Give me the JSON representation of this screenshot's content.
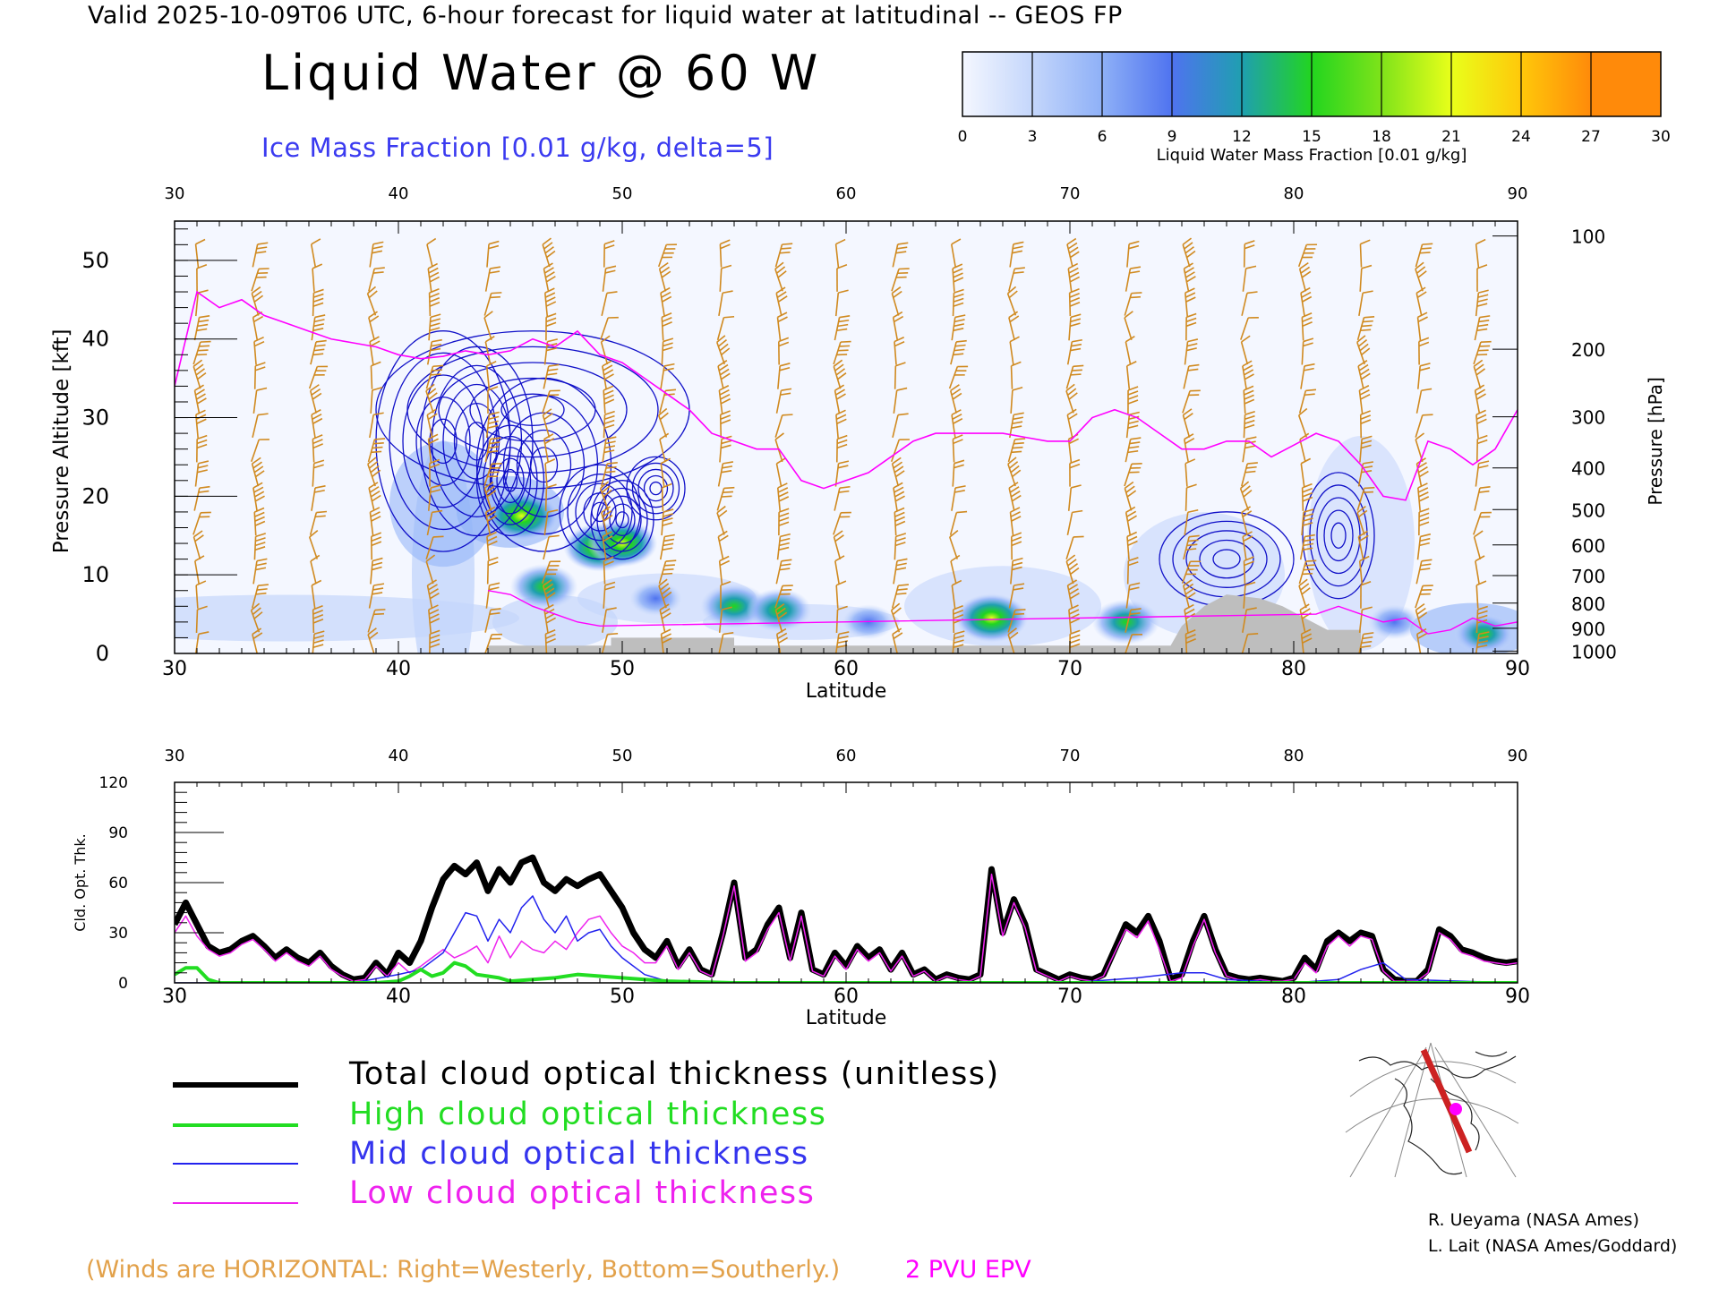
{
  "header": {
    "valid_line": "Valid 2025-10-09T06 UTC, 6-hour forecast for liquid water at latitudinal -- GEOS FP",
    "title": "Liquid Water @ 60 W",
    "ice_label": "Ice Mass Fraction [0.01 g/kg, delta=5]"
  },
  "colorbar": {
    "ticks": [
      "0",
      "3",
      "6",
      "9",
      "12",
      "15",
      "18",
      "21",
      "24",
      "27",
      "30"
    ],
    "label": "Liquid Water Mass Fraction [0.01 g/kg]",
    "colors": [
      "#f4f7ff",
      "#c4d6fb",
      "#8eb0f7",
      "#4f73ef",
      "#1f9fb0",
      "#22d51f",
      "#7fe31a",
      "#e9ff1a",
      "#ffc80a",
      "#ff8a0a"
    ]
  },
  "chart_data": [
    {
      "type": "heatmap",
      "title": "Liquid Water @ 60 W",
      "xlabel": "Latitude",
      "ylabel": "Pressure Altitude [kft]",
      "y2label": "Pressure [hPa]",
      "xlim": [
        30,
        90
      ],
      "ylim": [
        0,
        55
      ],
      "x_ticks": [
        "30",
        "40",
        "50",
        "60",
        "70",
        "80",
        "90"
      ],
      "y_ticks": [
        "0",
        "10",
        "20",
        "30",
        "40",
        "50"
      ],
      "pressure_ticks": [
        {
          "label": "100",
          "kft": 53.1
        },
        {
          "label": "200",
          "kft": 38.7
        },
        {
          "label": "300",
          "kft": 30.1
        },
        {
          "label": "400",
          "kft": 23.6
        },
        {
          "label": "500",
          "kft": 18.3
        },
        {
          "label": "600",
          "kft": 13.8
        },
        {
          "label": "700",
          "kft": 9.9
        },
        {
          "label": "800",
          "kft": 6.4
        },
        {
          "label": "900",
          "kft": 3.2
        },
        {
          "label": "1000",
          "kft": 0.3
        }
      ],
      "pvu_line": {
        "name": "2 PVU EPV",
        "color": "#ff00ff",
        "lat": [
          30,
          31,
          32,
          33,
          34,
          35,
          36,
          37,
          38,
          39,
          40,
          41,
          42,
          43,
          44,
          45,
          46,
          47,
          48,
          49,
          50,
          51,
          52,
          53,
          54,
          55,
          56,
          57,
          58,
          59,
          60,
          61,
          62,
          63,
          64,
          65,
          66,
          67,
          68,
          69,
          70,
          71,
          72,
          73,
          74,
          75,
          76,
          77,
          78,
          79,
          80,
          81,
          82,
          83,
          84,
          85,
          86,
          87,
          88,
          89,
          90
        ],
        "kft": [
          34,
          46,
          44,
          45,
          43,
          42,
          41,
          40,
          39.5,
          39,
          38,
          37.5,
          37.8,
          38.5,
          38,
          38.5,
          40,
          39,
          41,
          38,
          37,
          35,
          33,
          31,
          28,
          27,
          26,
          26,
          22,
          21,
          22,
          23,
          25,
          27,
          28,
          28,
          28,
          28,
          27.5,
          27,
          27,
          30,
          31,
          30,
          28,
          26,
          26,
          27,
          27,
          25,
          26.5,
          28,
          27,
          24,
          20,
          19.5,
          27,
          26,
          24,
          26,
          31
        ]
      },
      "liquid_blobs": [
        {
          "lat": 45.5,
          "kft": 17.5,
          "value": 21
        },
        {
          "lat": 46.5,
          "kft": 8.5,
          "value": 18
        },
        {
          "lat": 49.0,
          "kft": 13.5,
          "value": 20
        },
        {
          "lat": 50.0,
          "kft": 14.0,
          "value": 19
        },
        {
          "lat": 51.5,
          "kft": 7.0,
          "value": 12
        },
        {
          "lat": 55.0,
          "kft": 6.0,
          "value": 18
        },
        {
          "lat": 57.0,
          "kft": 5.5,
          "value": 17
        },
        {
          "lat": 61.0,
          "kft": 4.0,
          "value": 12
        },
        {
          "lat": 66.5,
          "kft": 4.5,
          "value": 20
        },
        {
          "lat": 72.5,
          "kft": 4.0,
          "value": 18
        },
        {
          "lat": 84.5,
          "kft": 4.0,
          "value": 12
        },
        {
          "lat": 88.5,
          "kft": 2.5,
          "value": 15
        }
      ],
      "terrain_kft": [
        {
          "lat": 44,
          "kft": 1
        },
        {
          "lat": 49.5,
          "kft": 2
        },
        {
          "lat": 55,
          "kft": 1
        },
        {
          "lat": 61,
          "kft": 1
        },
        {
          "lat": 75,
          "kft": 3.5
        },
        {
          "lat": 76,
          "kft": 6
        },
        {
          "lat": 77,
          "kft": 7.5
        },
        {
          "lat": 78.5,
          "kft": 7
        },
        {
          "lat": 79.5,
          "kft": 6
        },
        {
          "lat": 80.5,
          "kft": 4.5
        },
        {
          "lat": 81.5,
          "kft": 3
        }
      ]
    },
    {
      "type": "line",
      "xlabel": "Latitude",
      "ylabel": "Cld. Opt. Thk.",
      "xlim": [
        30,
        90
      ],
      "ylim": [
        0,
        120
      ],
      "x_ticks": [
        "30",
        "40",
        "50",
        "60",
        "70",
        "80",
        "90"
      ],
      "y_ticks": [
        "0",
        "30",
        "60",
        "90",
        "120"
      ],
      "series": [
        {
          "name": "Total cloud optical thickness (unitless)",
          "color": "#000000",
          "x": [
            30,
            30.5,
            31,
            31.5,
            32,
            32.5,
            33,
            33.5,
            34,
            34.5,
            35,
            35.5,
            36,
            36.5,
            37,
            37.5,
            38,
            38.5,
            39,
            39.5,
            40,
            40.5,
            41,
            41.5,
            42,
            42.5,
            43,
            43.5,
            44,
            44.5,
            45,
            45.5,
            46,
            46.5,
            47,
            47.5,
            48,
            48.5,
            49,
            49.5,
            50,
            50.5,
            51,
            51.5,
            52,
            52.5,
            53,
            53.5,
            54,
            54.5,
            55,
            55.5,
            56,
            56.5,
            57,
            57.5,
            58,
            58.5,
            59,
            59.5,
            60,
            60.5,
            61,
            61.5,
            62,
            62.5,
            63,
            63.5,
            64,
            64.5,
            65,
            65.5,
            66,
            66.5,
            67,
            67.5,
            68,
            68.5,
            69,
            69.5,
            70,
            70.5,
            71,
            71.5,
            72,
            72.5,
            73,
            73.5,
            74,
            74.5,
            75,
            75.5,
            76,
            76.5,
            77,
            77.5,
            78,
            78.5,
            79,
            79.5,
            80,
            80.5,
            81,
            81.5,
            82,
            82.5,
            83,
            83.5,
            84,
            84.5,
            85,
            85.5,
            86,
            86.5,
            87,
            87.5,
            88,
            88.5,
            89,
            89.5,
            90
          ],
          "values": [
            35,
            48,
            35,
            22,
            18,
            20,
            25,
            28,
            22,
            15,
            20,
            15,
            12,
            18,
            10,
            5,
            2,
            3,
            12,
            5,
            18,
            12,
            25,
            45,
            62,
            70,
            65,
            72,
            55,
            68,
            60,
            72,
            75,
            60,
            55,
            62,
            58,
            62,
            65,
            55,
            45,
            30,
            20,
            15,
            25,
            10,
            20,
            8,
            5,
            30,
            60,
            15,
            20,
            35,
            45,
            15,
            42,
            8,
            5,
            18,
            10,
            22,
            15,
            20,
            8,
            18,
            5,
            8,
            2,
            5,
            3,
            2,
            5,
            68,
            30,
            50,
            35,
            8,
            5,
            2,
            5,
            3,
            2,
            5,
            20,
            35,
            30,
            40,
            25,
            2,
            5,
            25,
            40,
            20,
            5,
            3,
            2,
            3,
            2,
            1,
            3,
            15,
            8,
            25,
            30,
            25,
            30,
            28,
            8,
            2,
            1,
            1,
            8,
            32,
            28,
            20,
            18,
            15,
            13,
            12,
            13
          ],
          "stroke_width": 7
        },
        {
          "name": "High cloud optical thickness",
          "color": "#22dd22",
          "x": [
            30,
            30.5,
            31,
            31.5,
            32,
            33,
            34,
            35,
            36,
            37,
            38,
            39,
            40,
            40.5,
            41,
            41.5,
            42,
            42.5,
            43,
            43.5,
            44,
            44.5,
            45,
            46,
            47,
            48,
            49,
            50,
            51,
            52,
            55,
            60,
            70,
            80,
            90
          ],
          "values": [
            5,
            9,
            9,
            2,
            0,
            0,
            0,
            0,
            0,
            0,
            0,
            0,
            1,
            4,
            8,
            4,
            6,
            12,
            10,
            5,
            4,
            3,
            1,
            2,
            3,
            5,
            4,
            3,
            2,
            1,
            0,
            0,
            0,
            0,
            0
          ],
          "stroke_width": 4
        },
        {
          "name": "Mid cloud optical thickness",
          "color": "#2222ee",
          "x": [
            30,
            38,
            40,
            41,
            42,
            42.5,
            43,
            43.5,
            44,
            44.5,
            45,
            45.5,
            46,
            46.5,
            47,
            47.5,
            48,
            48.5,
            49,
            49.5,
            50,
            51,
            52,
            55,
            60,
            70,
            73,
            75,
            76,
            77,
            80,
            82,
            83,
            84,
            85,
            90
          ],
          "values": [
            0,
            0,
            5,
            8,
            18,
            30,
            42,
            40,
            25,
            38,
            30,
            45,
            52,
            38,
            30,
            40,
            25,
            30,
            32,
            22,
            15,
            5,
            1,
            0,
            0,
            0,
            3,
            6,
            6,
            2,
            0,
            2,
            8,
            12,
            2,
            0
          ],
          "stroke_width": 1.5
        },
        {
          "name": "Low cloud optical thickness",
          "color": "#ee22ee",
          "x": [
            30,
            30.5,
            31,
            31.5,
            32,
            32.5,
            33,
            33.5,
            34,
            34.5,
            35,
            35.5,
            36,
            36.5,
            37,
            37.5,
            38,
            38.5,
            39,
            39.5,
            40,
            40.5,
            41,
            41.5,
            42,
            42.5,
            43,
            43.5,
            44,
            44.5,
            45,
            45.5,
            46,
            46.5,
            47,
            47.5,
            48,
            48.5,
            49,
            49.5,
            50,
            50.5,
            51,
            51.5,
            52,
            52.5,
            53,
            53.5,
            54,
            54.5,
            55,
            55.5,
            56,
            56.5,
            57,
            57.5,
            58,
            58.5,
            59,
            59.5,
            60,
            60.5,
            61,
            61.5,
            62,
            62.5,
            63,
            63.5,
            64,
            64.5,
            65,
            65.5,
            66,
            66.5,
            67,
            67.5,
            68,
            68.5,
            69,
            69.5,
            70,
            70.5,
            71,
            71.5,
            72,
            72.5,
            73,
            73.5,
            74,
            74.5,
            75,
            75.5,
            76,
            76.5,
            77,
            77.5,
            78,
            78.5,
            79,
            79.5,
            80,
            80.5,
            81,
            81.5,
            82,
            82.5,
            83,
            83.5,
            84,
            84.5,
            85,
            85.5,
            86,
            86.5,
            87,
            87.5,
            88,
            88.5,
            89,
            89.5,
            90
          ],
          "values": [
            30,
            40,
            28,
            20,
            16,
            18,
            23,
            26,
            20,
            13,
            18,
            13,
            10,
            16,
            8,
            4,
            1,
            2,
            10,
            4,
            12,
            6,
            10,
            15,
            20,
            15,
            18,
            22,
            12,
            28,
            15,
            25,
            20,
            18,
            25,
            20,
            30,
            38,
            40,
            30,
            22,
            18,
            12,
            12,
            22,
            8,
            18,
            7,
            4,
            28,
            58,
            13,
            18,
            32,
            42,
            13,
            40,
            7,
            4,
            16,
            8,
            20,
            13,
            18,
            7,
            16,
            4,
            7,
            1,
            4,
            2,
            1,
            4,
            65,
            28,
            48,
            33,
            7,
            4,
            1,
            4,
            2,
            1,
            4,
            18,
            32,
            27,
            37,
            20,
            1,
            3,
            22,
            38,
            18,
            4,
            2,
            1,
            2,
            1,
            1,
            2,
            12,
            6,
            22,
            28,
            22,
            28,
            26,
            7,
            1,
            1,
            1,
            6,
            30,
            26,
            18,
            16,
            13,
            12,
            11,
            12
          ],
          "stroke_width": 1.5
        }
      ]
    }
  ],
  "legend": {
    "items": [
      {
        "label": "Total cloud optical thickness (unitless)",
        "color": "#000000",
        "text_color": "#000000",
        "stroke": 6
      },
      {
        "label": "High cloud optical thickness",
        "color": "#22dd22",
        "text_color": "#22dd22",
        "stroke": 4
      },
      {
        "label": "Mid cloud optical thickness",
        "color": "#2222ee",
        "text_color": "#3434ee",
        "stroke": 2
      },
      {
        "label": "Low cloud optical thickness",
        "color": "#ee22ee",
        "text_color": "#ee22ee",
        "stroke": 2
      }
    ]
  },
  "notes": {
    "winds": "(Winds are HORIZONTAL: Right=Westerly, Bottom=Southerly.)",
    "pvu": "2 PVU EPV"
  },
  "credits": [
    "R. Ueyama (NASA Ames)",
    "L. Lait (NASA Ames/Goddard)"
  ],
  "colors": {
    "wind_barb": "#d08a20",
    "ice_contour": "#1010c8",
    "terrain": "#bebebe",
    "inset_path": "#cc2222",
    "inset_marker": "#ff00ff"
  },
  "inset_map": {
    "icon": "polar-map-icon"
  }
}
